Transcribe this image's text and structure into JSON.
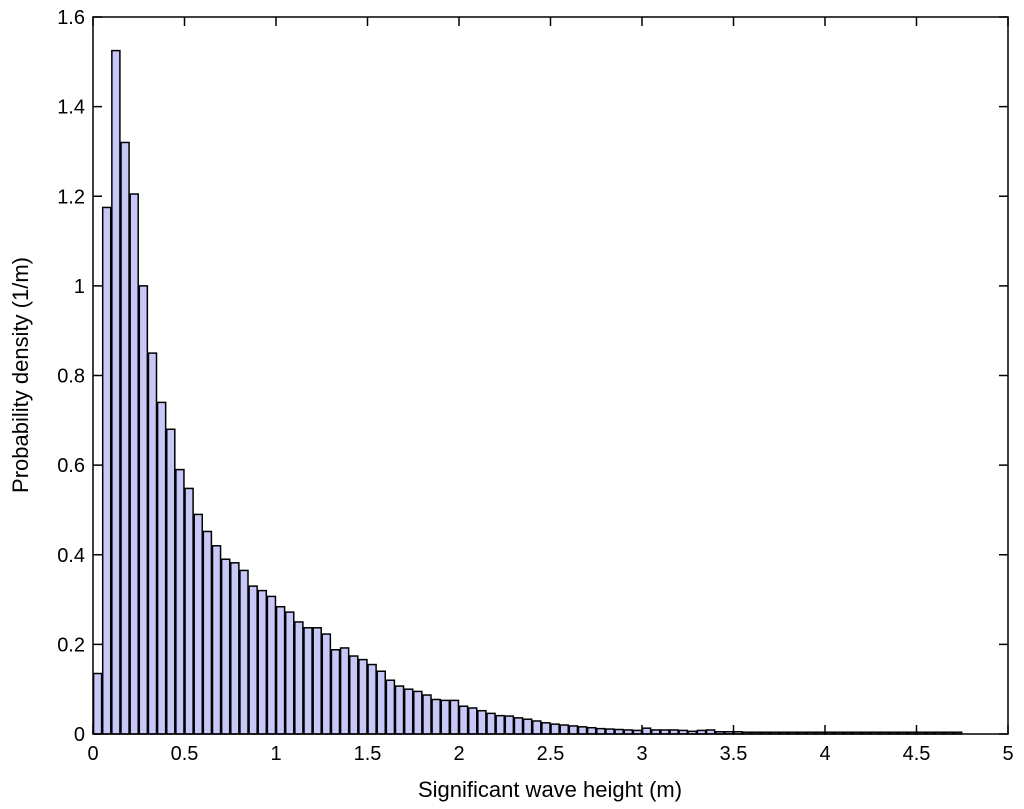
{
  "chart_data": {
    "type": "bar",
    "xlabel": "Significant wave height (m)",
    "ylabel": "Probability density (1/m)",
    "xlim": [
      0,
      5
    ],
    "ylim": [
      0,
      1.6
    ],
    "xticks": [
      0,
      0.5,
      1,
      1.5,
      2,
      2.5,
      3,
      3.5,
      4,
      4.5,
      5
    ],
    "xtick_labels": [
      "0",
      "0.5",
      "1",
      "1.5",
      "2",
      "2.5",
      "3",
      "3.5",
      "4",
      "4.5",
      "5"
    ],
    "yticks": [
      0,
      0.2,
      0.4,
      0.6,
      0.8,
      1.0,
      1.2,
      1.4,
      1.6
    ],
    "ytick_labels": [
      "0",
      "0.2",
      "0.4",
      "0.6",
      "0.8",
      "1",
      "1.2",
      "1.4",
      "1.6"
    ],
    "bin_width": 0.05,
    "grid": false,
    "bar_color": "#c8c8f8",
    "edge_color": "#000000",
    "x": [
      0.025,
      0.075,
      0.125,
      0.175,
      0.225,
      0.275,
      0.325,
      0.375,
      0.425,
      0.475,
      0.525,
      0.575,
      0.625,
      0.675,
      0.725,
      0.775,
      0.825,
      0.875,
      0.925,
      0.975,
      1.025,
      1.075,
      1.125,
      1.175,
      1.225,
      1.275,
      1.325,
      1.375,
      1.425,
      1.475,
      1.525,
      1.575,
      1.625,
      1.675,
      1.725,
      1.775,
      1.825,
      1.875,
      1.925,
      1.975,
      2.025,
      2.075,
      2.125,
      2.175,
      2.225,
      2.275,
      2.325,
      2.375,
      2.425,
      2.475,
      2.525,
      2.575,
      2.625,
      2.675,
      2.725,
      2.775,
      2.825,
      2.875,
      2.925,
      2.975,
      3.025,
      3.075,
      3.125,
      3.175,
      3.225,
      3.275,
      3.325,
      3.375,
      3.425,
      3.475,
      3.525,
      3.575,
      3.625,
      3.675,
      3.725,
      3.775,
      3.825,
      3.875,
      3.925,
      3.975,
      4.025,
      4.075,
      4.125,
      4.175,
      4.225,
      4.275,
      4.325,
      4.375,
      4.425,
      4.475,
      4.525,
      4.575,
      4.625,
      4.675,
      4.725
    ],
    "values": [
      0.135,
      1.175,
      1.525,
      1.32,
      1.205,
      1.0,
      0.85,
      0.74,
      0.68,
      0.59,
      0.548,
      0.49,
      0.452,
      0.42,
      0.39,
      0.382,
      0.365,
      0.33,
      0.32,
      0.307,
      0.284,
      0.272,
      0.25,
      0.237,
      0.237,
      0.223,
      0.188,
      0.192,
      0.174,
      0.166,
      0.155,
      0.14,
      0.12,
      0.107,
      0.1,
      0.095,
      0.087,
      0.077,
      0.075,
      0.075,
      0.062,
      0.058,
      0.052,
      0.046,
      0.041,
      0.04,
      0.036,
      0.033,
      0.029,
      0.025,
      0.022,
      0.02,
      0.018,
      0.016,
      0.014,
      0.012,
      0.011,
      0.01,
      0.009,
      0.008,
      0.013,
      0.009,
      0.009,
      0.009,
      0.008,
      0.006,
      0.008,
      0.009,
      0.005,
      0.005,
      0.005,
      0.004,
      0.004,
      0.004,
      0.004,
      0.004,
      0.004,
      0.004,
      0.004,
      0.004,
      0.004,
      0.004,
      0.004,
      0.004,
      0.004,
      0.004,
      0.004,
      0.004,
      0.004,
      0.004,
      0.004,
      0.004,
      0.004,
      0.004,
      0.004
    ]
  }
}
